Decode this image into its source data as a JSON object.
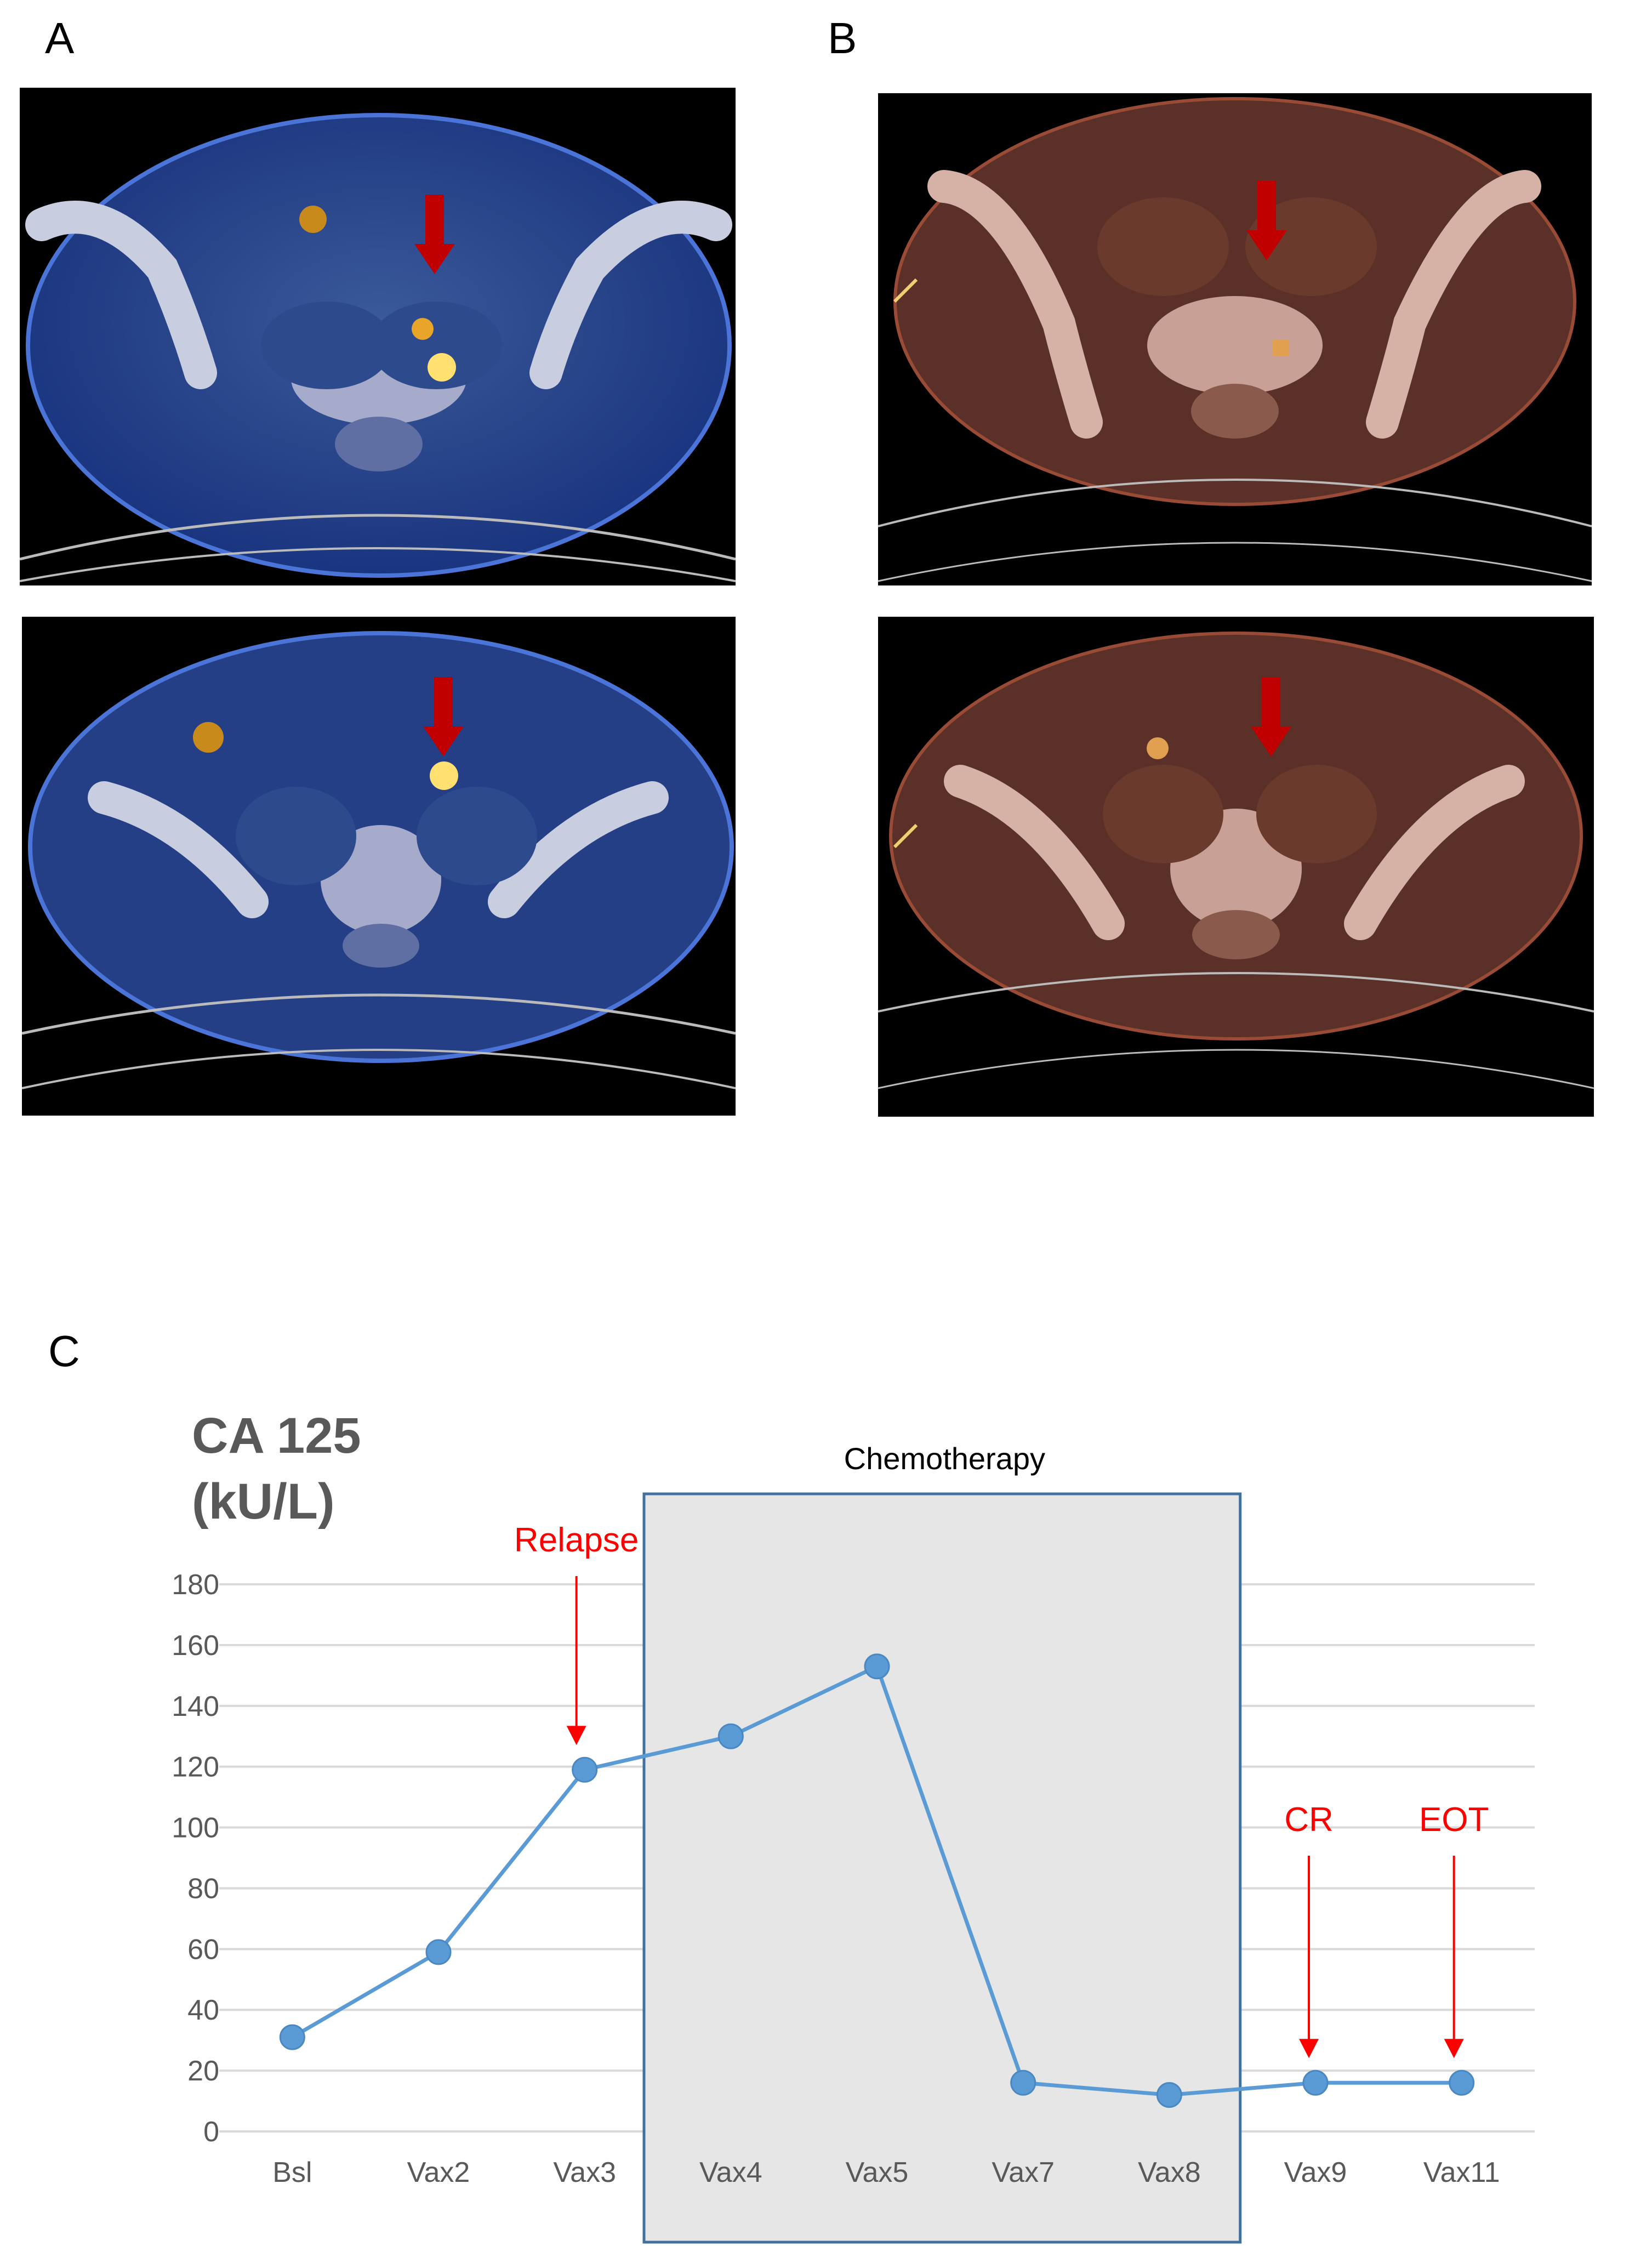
{
  "panels": {
    "a": "A",
    "b": "B",
    "c": "C"
  },
  "colors": {
    "line": "#5b9bd5",
    "marker": "#5b9bd5",
    "annotation": "#ff0000",
    "chemo_fill": "#e6e6e6",
    "chemo_border": "#41719c",
    "grid": "#d9d9d9",
    "arrow_red": "#c00000"
  },
  "chart_data": {
    "type": "line",
    "ylabel_line1": "CA 125",
    "ylabel_line2": "(kU/L)",
    "categories": [
      "Bsl",
      "Vax2",
      "Vax3",
      "Vax4",
      "Vax5",
      "Vax7",
      "Vax8",
      "Vax9",
      "Vax11"
    ],
    "values": [
      31,
      59,
      119,
      130,
      153,
      16,
      12,
      16,
      16
    ],
    "ylim": [
      0,
      180
    ],
    "yticks": [
      0,
      20,
      40,
      60,
      80,
      100,
      120,
      140,
      160,
      180
    ],
    "grid": true,
    "shaded_region": {
      "label": "Chemotherapy",
      "from": "Vax4",
      "to": "Vax8"
    },
    "annotations": [
      {
        "label": "Relapse",
        "category": "Vax3"
      },
      {
        "label": "CR",
        "category": "Vax9"
      },
      {
        "label": "EOT",
        "category": "Vax11"
      }
    ]
  }
}
